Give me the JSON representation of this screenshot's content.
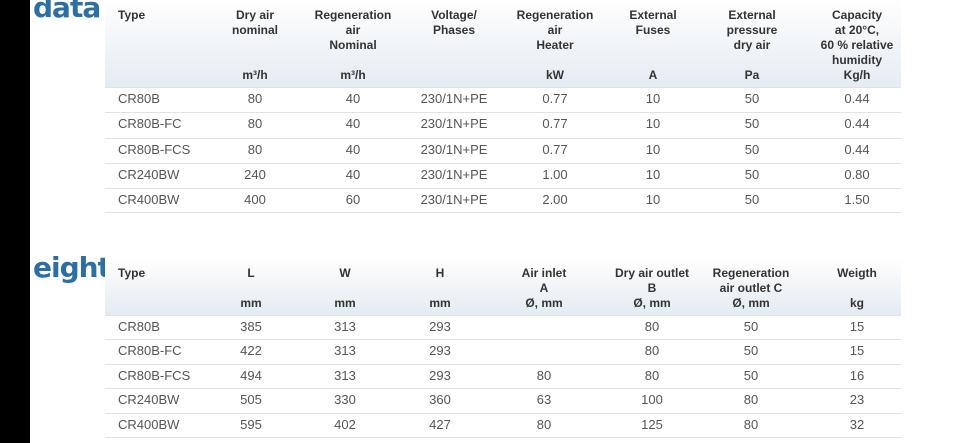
{
  "headings": [
    "data",
    "eight"
  ],
  "tables": [
    {
      "columns": [
        [
          "Type"
        ],
        [
          "Dry air",
          "nominal"
        ],
        [
          "Regeneration",
          "air",
          "Nominal"
        ],
        [
          "Voltage/",
          "Phases"
        ],
        [
          "Regeneration",
          "air",
          "Heater"
        ],
        [
          "External",
          "Fuses"
        ],
        [
          "External",
          "pressure",
          "dry air"
        ],
        [
          "Capacity",
          "at 20°C,",
          "60 % relative",
          "humidity"
        ]
      ],
      "units": [
        null,
        "m³/h",
        "m³/h",
        null,
        "kW",
        "A",
        "Pa",
        "Kg/h"
      ],
      "rows": [
        [
          "CR80B",
          "80",
          "40",
          "230/1N+PE",
          "0.77",
          "10",
          "50",
          "0.44"
        ],
        [
          "CR80B-FC",
          "80",
          "40",
          "230/1N+PE",
          "0.77",
          "10",
          "50",
          "0.44"
        ],
        [
          "CR80B-FCS",
          "80",
          "40",
          "230/1N+PE",
          "0.77",
          "10",
          "50",
          "0.44"
        ],
        [
          "CR240BW",
          "240",
          "40",
          "230/1N+PE",
          "1.00",
          "10",
          "50",
          "0.80"
        ],
        [
          "CR400BW",
          "400",
          "60",
          "230/1N+PE",
          "2.00",
          "10",
          "50",
          "1.50"
        ]
      ]
    },
    {
      "columns": [
        [
          "Type"
        ],
        [
          "L"
        ],
        [
          "W"
        ],
        [
          "H"
        ],
        [
          "Air inlet",
          "A"
        ],
        [
          "Dry air outlet",
          "B"
        ],
        [
          "Regeneration",
          "air outlet C"
        ],
        [
          "Weigth"
        ]
      ],
      "units": [
        null,
        "mm",
        "mm",
        "mm",
        "Ø, mm",
        "Ø, mm",
        "Ø, mm",
        "kg"
      ],
      "rows": [
        [
          "CR80B",
          "385",
          "313",
          "293",
          null,
          "80",
          "50",
          "15"
        ],
        [
          "CR80B-FC",
          "422",
          "313",
          "293",
          null,
          "80",
          "50",
          "15"
        ],
        [
          "CR80B-FCS",
          "494",
          "313",
          "293",
          "80",
          "80",
          "50",
          "16"
        ],
        [
          "CR240BW",
          "505",
          "330",
          "360",
          "63",
          "100",
          "80",
          "23"
        ],
        [
          "CR400BW",
          "595",
          "402",
          "427",
          "80",
          "125",
          "80",
          "32"
        ]
      ]
    }
  ]
}
